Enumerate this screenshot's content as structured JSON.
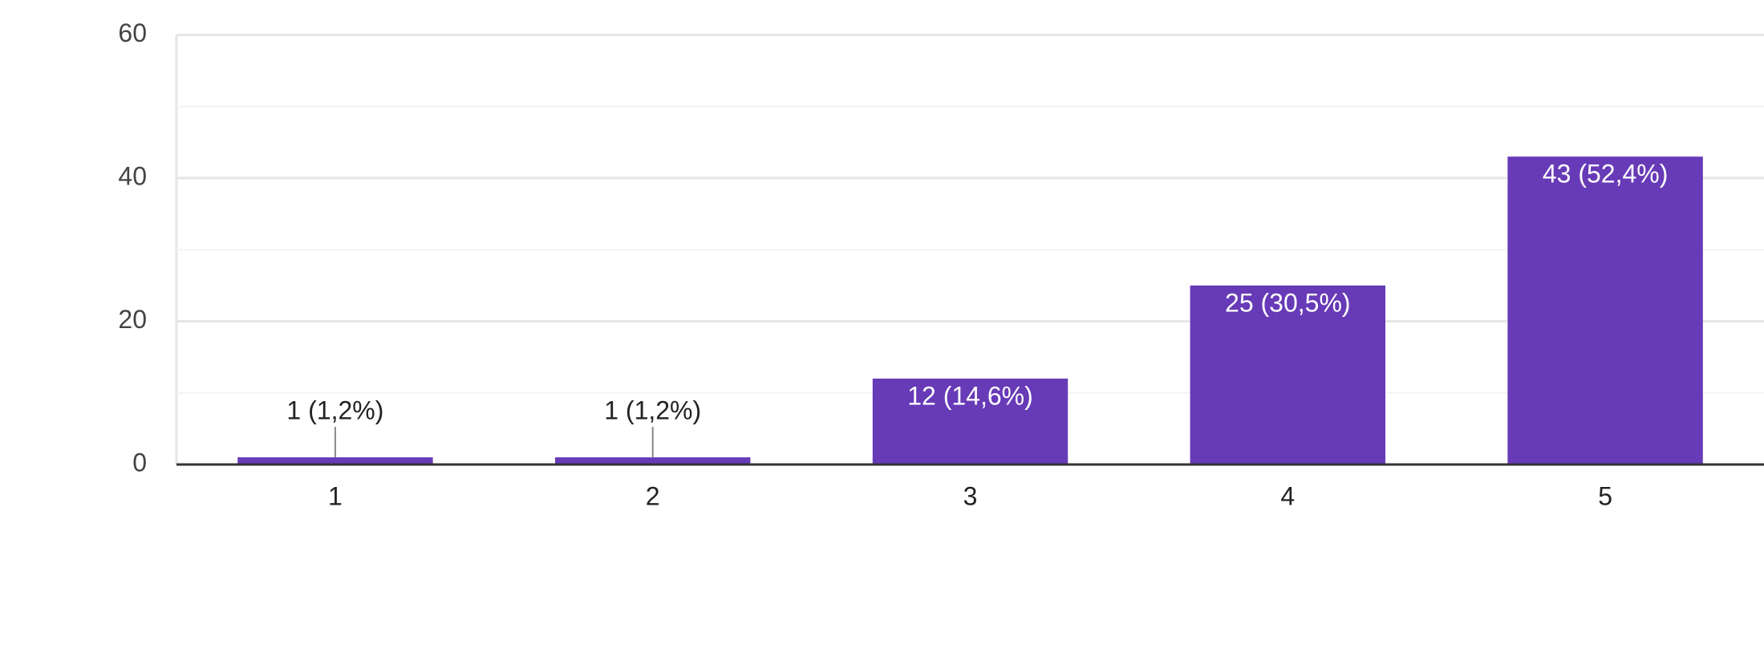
{
  "chart_data": {
    "type": "bar",
    "categories": [
      "1",
      "2",
      "3",
      "4",
      "5"
    ],
    "values": [
      1,
      1,
      12,
      25,
      43
    ],
    "value_labels": [
      "1 (1,2%)",
      "1 (1,2%)",
      "12 (14,6%)",
      "25 (30,5%)",
      "43 (52,4%)"
    ],
    "color": "#673ab7",
    "ylim": [
      0,
      60
    ],
    "yticks": [
      0,
      20,
      40,
      60
    ],
    "minor_yticks": [
      10,
      30,
      50
    ],
    "grid": true
  }
}
